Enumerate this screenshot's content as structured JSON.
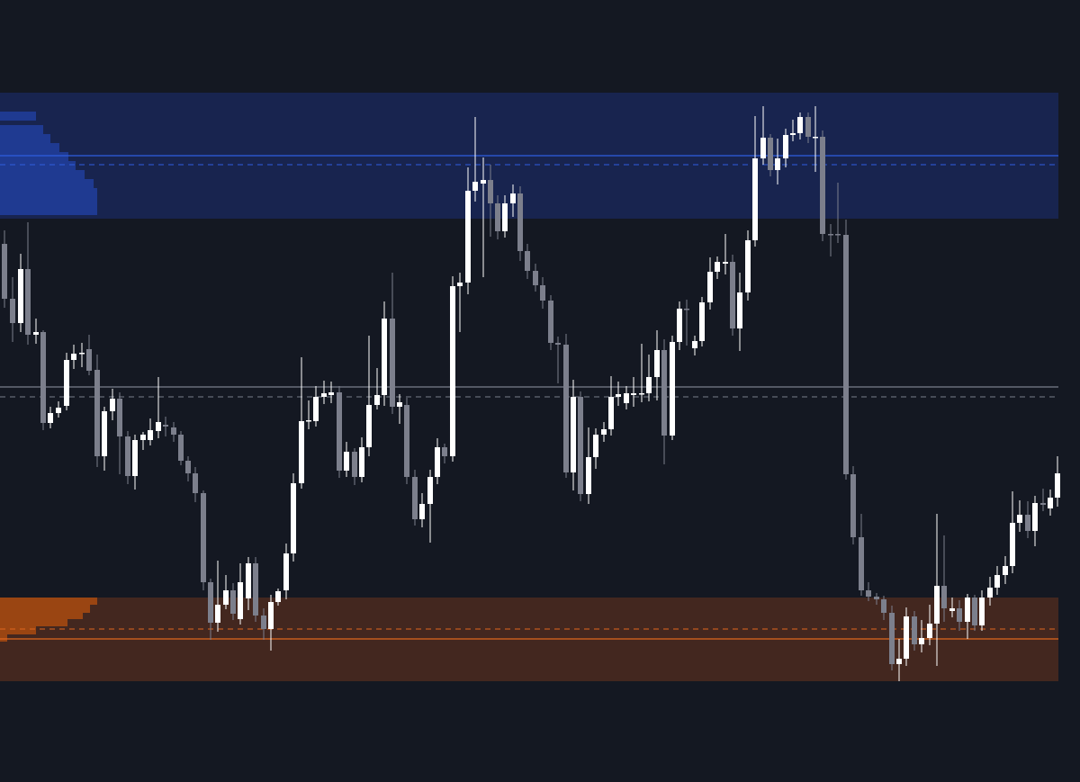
{
  "theme": {
    "background": "#141822",
    "bull_color": "#ffffff",
    "bear_color": "#7c7f8c",
    "supply_zone_fill": "#18244f",
    "supply_profile_fill": "#1f3a91",
    "supply_line": "#2f5de0",
    "demand_zone_fill": "#43271f",
    "demand_profile_fill": "#9a4512",
    "demand_line": "#e0671f",
    "mid_line": "#9298a6"
  },
  "chart_data": {
    "type": "candlestick",
    "ylim": [
      0,
      869
    ],
    "grid": false,
    "legend": "none",
    "zones": [
      {
        "kind": "supply",
        "top": 766,
        "bottom": 626,
        "level_solid": 696,
        "level_dashed": 686
      },
      {
        "kind": "demand",
        "top": 205,
        "bottom": 112,
        "level_solid": 159,
        "level_dashed": 170
      }
    ],
    "mid_levels": {
      "solid": 439,
      "dashed": 428
    },
    "supply_profile": [
      735,
      720,
      710,
      700,
      690,
      680,
      670,
      660,
      650,
      640,
      630
    ],
    "supply_profile_widths": [
      40,
      48,
      56,
      66,
      76,
      84,
      94,
      104,
      108,
      108,
      108
    ],
    "demand_profile": [
      205,
      197,
      188,
      181,
      173,
      164
    ],
    "demand_profile_widths": [
      108,
      100,
      92,
      75,
      40,
      8
    ],
    "candles": [
      {
        "x": 5,
        "o": 598,
        "c": 537,
        "h": 613,
        "l": 527,
        "bull": false
      },
      {
        "x": 14,
        "o": 537,
        "c": 510,
        "h": 561,
        "l": 489,
        "bull": false
      },
      {
        "x": 23,
        "o": 510,
        "c": 570,
        "h": 587,
        "l": 500,
        "bull": true
      },
      {
        "x": 31,
        "o": 570,
        "c": 497,
        "h": 622,
        "l": 486,
        "bull": false
      },
      {
        "x": 40,
        "o": 497,
        "c": 500,
        "h": 515,
        "l": 487,
        "bull": true
      },
      {
        "x": 48,
        "o": 500,
        "c": 399,
        "h": 502,
        "l": 391,
        "bull": false
      },
      {
        "x": 56,
        "o": 399,
        "c": 410,
        "h": 417,
        "l": 393,
        "bull": true
      },
      {
        "x": 65,
        "o": 410,
        "c": 416,
        "h": 423,
        "l": 405,
        "bull": true
      },
      {
        "x": 74,
        "o": 418,
        "c": 469,
        "h": 477,
        "l": 413,
        "bull": true
      },
      {
        "x": 82,
        "o": 469,
        "c": 476,
        "h": 486,
        "l": 459,
        "bull": true
      },
      {
        "x": 91,
        "o": 476,
        "c": 477,
        "h": 488,
        "l": 461,
        "bull": true
      },
      {
        "x": 99,
        "o": 481,
        "c": 457,
        "h": 497,
        "l": 452,
        "bull": false
      },
      {
        "x": 108,
        "o": 458,
        "c": 362,
        "h": 475,
        "l": 350,
        "bull": false
      },
      {
        "x": 116,
        "o": 362,
        "c": 412,
        "h": 417,
        "l": 346,
        "bull": true
      },
      {
        "x": 125,
        "o": 412,
        "c": 426,
        "h": 437,
        "l": 402,
        "bull": true
      },
      {
        "x": 133,
        "o": 426,
        "c": 384,
        "h": 433,
        "l": 342,
        "bull": false
      },
      {
        "x": 142,
        "o": 384,
        "c": 340,
        "h": 390,
        "l": 331,
        "bull": false
      },
      {
        "x": 150,
        "o": 340,
        "c": 380,
        "h": 386,
        "l": 325,
        "bull": true
      },
      {
        "x": 159,
        "o": 380,
        "c": 386,
        "h": 389,
        "l": 369,
        "bull": true
      },
      {
        "x": 167,
        "o": 380,
        "c": 391,
        "h": 404,
        "l": 374,
        "bull": true
      },
      {
        "x": 176,
        "o": 390,
        "c": 400,
        "h": 450,
        "l": 382,
        "bull": true
      },
      {
        "x": 184,
        "o": 397,
        "c": 395,
        "h": 406,
        "l": 384,
        "bull": false
      },
      {
        "x": 193,
        "o": 394,
        "c": 386,
        "h": 400,
        "l": 378,
        "bull": false
      },
      {
        "x": 201,
        "o": 386,
        "c": 357,
        "h": 390,
        "l": 352,
        "bull": false
      },
      {
        "x": 209,
        "o": 357,
        "c": 343,
        "h": 362,
        "l": 334,
        "bull": false
      },
      {
        "x": 217,
        "o": 343,
        "c": 321,
        "h": 350,
        "l": 311,
        "bull": false
      },
      {
        "x": 226,
        "o": 321,
        "c": 222,
        "h": 324,
        "l": 213,
        "bull": false
      },
      {
        "x": 234,
        "o": 222,
        "c": 177,
        "h": 226,
        "l": 158,
        "bull": false
      },
      {
        "x": 242,
        "o": 177,
        "c": 197,
        "h": 246,
        "l": 167,
        "bull": true
      },
      {
        "x": 251,
        "o": 197,
        "c": 213,
        "h": 230,
        "l": 192,
        "bull": true
      },
      {
        "x": 259,
        "o": 213,
        "c": 187,
        "h": 221,
        "l": 180,
        "bull": false
      },
      {
        "x": 267,
        "o": 181,
        "c": 222,
        "h": 243,
        "l": 175,
        "bull": true
      },
      {
        "x": 276,
        "o": 204,
        "c": 243,
        "h": 250,
        "l": 191,
        "bull": true
      },
      {
        "x": 284,
        "o": 243,
        "c": 185,
        "h": 250,
        "l": 178,
        "bull": false
      },
      {
        "x": 293,
        "o": 185,
        "c": 170,
        "h": 193,
        "l": 158,
        "bull": false
      },
      {
        "x": 301,
        "o": 170,
        "c": 200,
        "h": 208,
        "l": 146,
        "bull": true
      },
      {
        "x": 309,
        "o": 200,
        "c": 212,
        "h": 215,
        "l": 196,
        "bull": true
      },
      {
        "x": 318,
        "o": 213,
        "c": 254,
        "h": 265,
        "l": 203,
        "bull": true
      },
      {
        "x": 326,
        "o": 254,
        "c": 332,
        "h": 343,
        "l": 245,
        "bull": true
      },
      {
        "x": 335,
        "o": 332,
        "c": 401,
        "h": 472,
        "l": 326,
        "bull": true
      },
      {
        "x": 343,
        "o": 401,
        "c": 402,
        "h": 424,
        "l": 392,
        "bull": true
      },
      {
        "x": 351,
        "o": 401,
        "c": 428,
        "h": 440,
        "l": 395,
        "bull": true
      },
      {
        "x": 360,
        "o": 428,
        "c": 432,
        "h": 446,
        "l": 420,
        "bull": true
      },
      {
        "x": 368,
        "o": 430,
        "c": 433,
        "h": 445,
        "l": 421,
        "bull": true
      },
      {
        "x": 377,
        "o": 433,
        "c": 346,
        "h": 440,
        "l": 338,
        "bull": false
      },
      {
        "x": 385,
        "o": 346,
        "c": 367,
        "h": 378,
        "l": 339,
        "bull": true
      },
      {
        "x": 394,
        "o": 367,
        "c": 339,
        "h": 371,
        "l": 330,
        "bull": false
      },
      {
        "x": 402,
        "o": 339,
        "c": 372,
        "h": 383,
        "l": 333,
        "bull": true
      },
      {
        "x": 410,
        "o": 372,
        "c": 419,
        "h": 496,
        "l": 362,
        "bull": true
      },
      {
        "x": 419,
        "o": 419,
        "c": 430,
        "h": 460,
        "l": 414,
        "bull": true
      },
      {
        "x": 427,
        "o": 430,
        "c": 515,
        "h": 534,
        "l": 418,
        "bull": true
      },
      {
        "x": 436,
        "o": 515,
        "c": 417,
        "h": 566,
        "l": 409,
        "bull": false
      },
      {
        "x": 444,
        "o": 417,
        "c": 422,
        "h": 431,
        "l": 398,
        "bull": true
      },
      {
        "x": 452,
        "o": 419,
        "c": 339,
        "h": 427,
        "l": 331,
        "bull": false
      },
      {
        "x": 461,
        "o": 339,
        "c": 292,
        "h": 347,
        "l": 285,
        "bull": false
      },
      {
        "x": 469,
        "o": 292,
        "c": 309,
        "h": 321,
        "l": 283,
        "bull": true
      },
      {
        "x": 478,
        "o": 309,
        "c": 339,
        "h": 347,
        "l": 266,
        "bull": true
      },
      {
        "x": 486,
        "o": 339,
        "c": 372,
        "h": 382,
        "l": 331,
        "bull": true
      },
      {
        "x": 494,
        "o": 372,
        "c": 362,
        "h": 376,
        "l": 354,
        "bull": false
      },
      {
        "x": 503,
        "o": 362,
        "c": 551,
        "h": 562,
        "l": 356,
        "bull": true
      },
      {
        "x": 511,
        "o": 551,
        "c": 555,
        "h": 566,
        "l": 500,
        "bull": true
      },
      {
        "x": 520,
        "o": 555,
        "c": 657,
        "h": 683,
        "l": 542,
        "bull": true
      },
      {
        "x": 528,
        "o": 657,
        "c": 667,
        "h": 739,
        "l": 645,
        "bull": true
      },
      {
        "x": 537,
        "o": 665,
        "c": 669,
        "h": 694,
        "l": 561,
        "bull": true
      },
      {
        "x": 545,
        "o": 669,
        "c": 643,
        "h": 686,
        "l": 606,
        "bull": false
      },
      {
        "x": 553,
        "o": 643,
        "c": 612,
        "h": 652,
        "l": 603,
        "bull": false
      },
      {
        "x": 561,
        "o": 612,
        "c": 643,
        "h": 652,
        "l": 605,
        "bull": true
      },
      {
        "x": 570,
        "o": 643,
        "c": 654,
        "h": 664,
        "l": 628,
        "bull": true
      },
      {
        "x": 578,
        "o": 654,
        "c": 590,
        "h": 662,
        "l": 579,
        "bull": false
      },
      {
        "x": 586,
        "o": 590,
        "c": 568,
        "h": 598,
        "l": 559,
        "bull": false
      },
      {
        "x": 595,
        "o": 568,
        "c": 552,
        "h": 576,
        "l": 545,
        "bull": false
      },
      {
        "x": 603,
        "o": 552,
        "c": 535,
        "h": 561,
        "l": 526,
        "bull": false
      },
      {
        "x": 612,
        "o": 535,
        "c": 488,
        "h": 541,
        "l": 480,
        "bull": false
      },
      {
        "x": 620,
        "o": 488,
        "c": 486,
        "h": 495,
        "l": 443,
        "bull": false
      },
      {
        "x": 629,
        "o": 486,
        "c": 344,
        "h": 498,
        "l": 338,
        "bull": false
      },
      {
        "x": 637,
        "o": 344,
        "c": 428,
        "h": 447,
        "l": 324,
        "bull": true
      },
      {
        "x": 645,
        "o": 428,
        "c": 320,
        "h": 434,
        "l": 312,
        "bull": false
      },
      {
        "x": 654,
        "o": 320,
        "c": 361,
        "h": 394,
        "l": 309,
        "bull": true
      },
      {
        "x": 662,
        "o": 361,
        "c": 386,
        "h": 393,
        "l": 348,
        "bull": true
      },
      {
        "x": 671,
        "o": 386,
        "c": 392,
        "h": 400,
        "l": 378,
        "bull": true
      },
      {
        "x": 679,
        "o": 392,
        "c": 428,
        "h": 451,
        "l": 385,
        "bull": true
      },
      {
        "x": 687,
        "o": 428,
        "c": 431,
        "h": 445,
        "l": 418,
        "bull": true
      },
      {
        "x": 696,
        "o": 421,
        "c": 432,
        "h": 440,
        "l": 414,
        "bull": true
      },
      {
        "x": 704,
        "o": 430,
        "c": 432,
        "h": 450,
        "l": 417,
        "bull": true
      },
      {
        "x": 713,
        "o": 432,
        "c": 432,
        "h": 487,
        "l": 422,
        "bull": true
      },
      {
        "x": 721,
        "o": 432,
        "c": 450,
        "h": 475,
        "l": 423,
        "bull": true
      },
      {
        "x": 730,
        "o": 450,
        "c": 480,
        "h": 502,
        "l": 424,
        "bull": true
      },
      {
        "x": 738,
        "o": 480,
        "c": 385,
        "h": 492,
        "l": 353,
        "bull": false
      },
      {
        "x": 747,
        "o": 385,
        "c": 489,
        "h": 496,
        "l": 380,
        "bull": true
      },
      {
        "x": 755,
        "o": 489,
        "c": 526,
        "h": 534,
        "l": 480,
        "bull": true
      },
      {
        "x": 763,
        "o": 526,
        "c": 525,
        "h": 536,
        "l": 485,
        "bull": false
      },
      {
        "x": 772,
        "o": 482,
        "c": 490,
        "h": 496,
        "l": 474,
        "bull": true
      },
      {
        "x": 780,
        "o": 490,
        "c": 533,
        "h": 539,
        "l": 484,
        "bull": true
      },
      {
        "x": 789,
        "o": 533,
        "c": 567,
        "h": 583,
        "l": 525,
        "bull": true
      },
      {
        "x": 797,
        "o": 567,
        "c": 578,
        "h": 584,
        "l": 559,
        "bull": true
      },
      {
        "x": 806,
        "o": 576,
        "c": 578,
        "h": 609,
        "l": 564,
        "bull": true
      },
      {
        "x": 814,
        "o": 578,
        "c": 504,
        "h": 586,
        "l": 496,
        "bull": false
      },
      {
        "x": 822,
        "o": 504,
        "c": 544,
        "h": 566,
        "l": 479,
        "bull": true
      },
      {
        "x": 831,
        "o": 544,
        "c": 602,
        "h": 613,
        "l": 535,
        "bull": true
      },
      {
        "x": 839,
        "o": 602,
        "c": 693,
        "h": 740,
        "l": 595,
        "bull": true
      },
      {
        "x": 848,
        "o": 693,
        "c": 716,
        "h": 751,
        "l": 686,
        "bull": true
      },
      {
        "x": 856,
        "o": 716,
        "c": 680,
        "h": 720,
        "l": 673,
        "bull": false
      },
      {
        "x": 864,
        "o": 680,
        "c": 693,
        "h": 715,
        "l": 664,
        "bull": true
      },
      {
        "x": 873,
        "o": 693,
        "c": 719,
        "h": 726,
        "l": 683,
        "bull": true
      },
      {
        "x": 881,
        "o": 719,
        "c": 721,
        "h": 736,
        "l": 712,
        "bull": true
      },
      {
        "x": 889,
        "o": 721,
        "c": 739,
        "h": 744,
        "l": 714,
        "bull": true
      },
      {
        "x": 898,
        "o": 739,
        "c": 717,
        "h": 744,
        "l": 710,
        "bull": false
      },
      {
        "x": 906,
        "o": 717,
        "c": 717,
        "h": 751,
        "l": 678,
        "bull": true
      },
      {
        "x": 914,
        "o": 717,
        "c": 609,
        "h": 724,
        "l": 601,
        "bull": false
      },
      {
        "x": 923,
        "o": 609,
        "c": 608,
        "h": 620,
        "l": 584,
        "bull": false
      },
      {
        "x": 931,
        "o": 609,
        "c": 608,
        "h": 666,
        "l": 599,
        "bull": false
      },
      {
        "x": 940,
        "o": 608,
        "c": 342,
        "h": 625,
        "l": 336,
        "bull": false
      },
      {
        "x": 948,
        "o": 342,
        "c": 272,
        "h": 351,
        "l": 264,
        "bull": false
      },
      {
        "x": 957,
        "o": 272,
        "c": 213,
        "h": 298,
        "l": 207,
        "bull": false
      },
      {
        "x": 965,
        "o": 213,
        "c": 206,
        "h": 222,
        "l": 201,
        "bull": false
      },
      {
        "x": 974,
        "o": 206,
        "c": 203,
        "h": 210,
        "l": 197,
        "bull": false
      },
      {
        "x": 982,
        "o": 203,
        "c": 188,
        "h": 207,
        "l": 180,
        "bull": false
      },
      {
        "x": 991,
        "o": 188,
        "c": 131,
        "h": 196,
        "l": 124,
        "bull": false
      },
      {
        "x": 999,
        "o": 131,
        "c": 137,
        "h": 159,
        "l": 112,
        "bull": true
      },
      {
        "x": 1007,
        "o": 137,
        "c": 184,
        "h": 194,
        "l": 129,
        "bull": true
      },
      {
        "x": 1016,
        "o": 184,
        "c": 153,
        "h": 190,
        "l": 146,
        "bull": false
      },
      {
        "x": 1024,
        "o": 153,
        "c": 160,
        "h": 180,
        "l": 144,
        "bull": true
      },
      {
        "x": 1033,
        "o": 160,
        "c": 176,
        "h": 197,
        "l": 152,
        "bull": true
      },
      {
        "x": 1041,
        "o": 176,
        "c": 218,
        "h": 298,
        "l": 129,
        "bull": true
      },
      {
        "x": 1049,
        "o": 218,
        "c": 193,
        "h": 274,
        "l": 178,
        "bull": false
      },
      {
        "x": 1058,
        "o": 190,
        "c": 193,
        "h": 205,
        "l": 183,
        "bull": true
      },
      {
        "x": 1066,
        "o": 193,
        "c": 178,
        "h": 202,
        "l": 168,
        "bull": false
      },
      {
        "x": 1075,
        "o": 178,
        "c": 205,
        "h": 209,
        "l": 159,
        "bull": true
      },
      {
        "x": 1083,
        "o": 205,
        "c": 174,
        "h": 208,
        "l": 168,
        "bull": false
      },
      {
        "x": 1091,
        "o": 174,
        "c": 205,
        "h": 213,
        "l": 168,
        "bull": true
      },
      {
        "x": 1100,
        "o": 205,
        "c": 216,
        "h": 228,
        "l": 196,
        "bull": true
      },
      {
        "x": 1108,
        "o": 216,
        "c": 230,
        "h": 240,
        "l": 208,
        "bull": true
      },
      {
        "x": 1117,
        "o": 230,
        "c": 240,
        "h": 251,
        "l": 220,
        "bull": true
      },
      {
        "x": 1125,
        "o": 240,
        "c": 288,
        "h": 323,
        "l": 232,
        "bull": true
      },
      {
        "x": 1133,
        "o": 288,
        "c": 297,
        "h": 313,
        "l": 278,
        "bull": true
      },
      {
        "x": 1142,
        "o": 297,
        "c": 279,
        "h": 312,
        "l": 271,
        "bull": false
      },
      {
        "x": 1150,
        "o": 279,
        "c": 310,
        "h": 318,
        "l": 262,
        "bull": true
      },
      {
        "x": 1159,
        "o": 310,
        "c": 308,
        "h": 326,
        "l": 301,
        "bull": false
      },
      {
        "x": 1167,
        "o": 304,
        "c": 316,
        "h": 325,
        "l": 296,
        "bull": true
      },
      {
        "x": 1175,
        "o": 316,
        "c": 343,
        "h": 362,
        "l": 306,
        "bull": true
      }
    ]
  }
}
